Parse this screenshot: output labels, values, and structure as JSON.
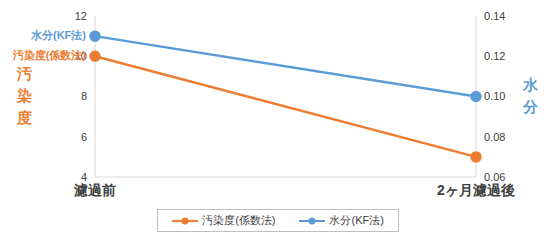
{
  "chart_data": {
    "type": "line",
    "categories": [
      "濾過前",
      "2ヶ月濾過後"
    ],
    "y_label": "汚染度",
    "y2_label": "水分",
    "ylim": [
      4,
      12
    ],
    "yticks": [
      4,
      6,
      8,
      10,
      12
    ],
    "y2lim": [
      0.06,
      0.14
    ],
    "y2ticks": [
      0.06,
      0.08,
      {
        "value": 0.1,
        "label": "0.10"
      },
      0.12,
      0.14
    ],
    "grid": false,
    "legend": "bottom",
    "series": [
      {
        "name": "汚染度(係数法)",
        "color": "#ED7D31",
        "marker": "circle",
        "values": [
          10,
          5
        ]
      },
      {
        "name": "水分(KF法)",
        "color": "#5B9BD5",
        "marker": "circle",
        "axis": "y2",
        "values": [
          0.13,
          0.1
        ]
      }
    ]
  }
}
